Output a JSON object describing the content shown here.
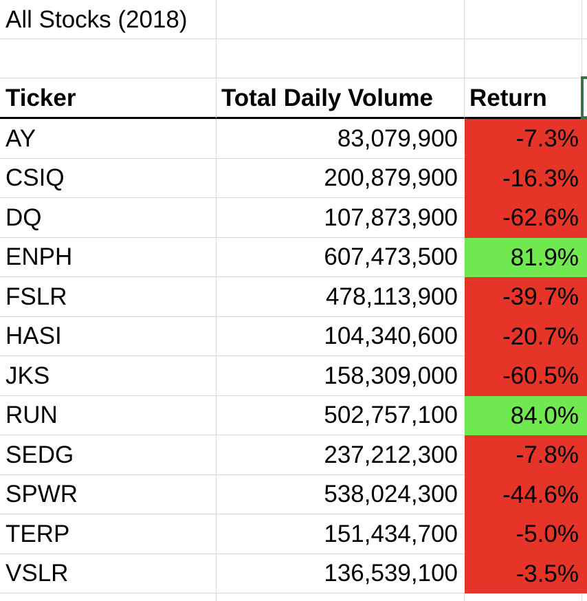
{
  "title": "All Stocks (2018)",
  "columns": {
    "ticker": "Ticker",
    "volume": "Total Daily Volume",
    "return": "Return"
  },
  "rows": [
    {
      "ticker": "AY",
      "volume": "83,079,900",
      "return": "-7.3%",
      "status": "negative"
    },
    {
      "ticker": "CSIQ",
      "volume": "200,879,900",
      "return": "-16.3%",
      "status": "negative"
    },
    {
      "ticker": "DQ",
      "volume": "107,873,900",
      "return": "-62.6%",
      "status": "negative"
    },
    {
      "ticker": "ENPH",
      "volume": "607,473,500",
      "return": "81.9%",
      "status": "positive"
    },
    {
      "ticker": "FSLR",
      "volume": "478,113,900",
      "return": "-39.7%",
      "status": "negative"
    },
    {
      "ticker": "HASI",
      "volume": "104,340,600",
      "return": "-20.7%",
      "status": "negative"
    },
    {
      "ticker": "JKS",
      "volume": "158,309,000",
      "return": "-60.5%",
      "status": "negative"
    },
    {
      "ticker": "RUN",
      "volume": "502,757,100",
      "return": "84.0%",
      "status": "positive"
    },
    {
      "ticker": "SEDG",
      "volume": "237,212,300",
      "return": "-7.8%",
      "status": "negative"
    },
    {
      "ticker": "SPWR",
      "volume": "538,024,300",
      "return": "-44.6%",
      "status": "negative"
    },
    {
      "ticker": "TERP",
      "volume": "151,434,700",
      "return": "-5.0%",
      "status": "negative"
    },
    {
      "ticker": "VSLR",
      "volume": "136,539,100",
      "return": "-3.5%",
      "status": "negative"
    }
  ],
  "colors": {
    "negative_fill": "#E73428",
    "positive_fill": "#70E850",
    "gridline": "#D8D8D8",
    "header_rule": "#000000",
    "selection_border": "#3A7247"
  }
}
